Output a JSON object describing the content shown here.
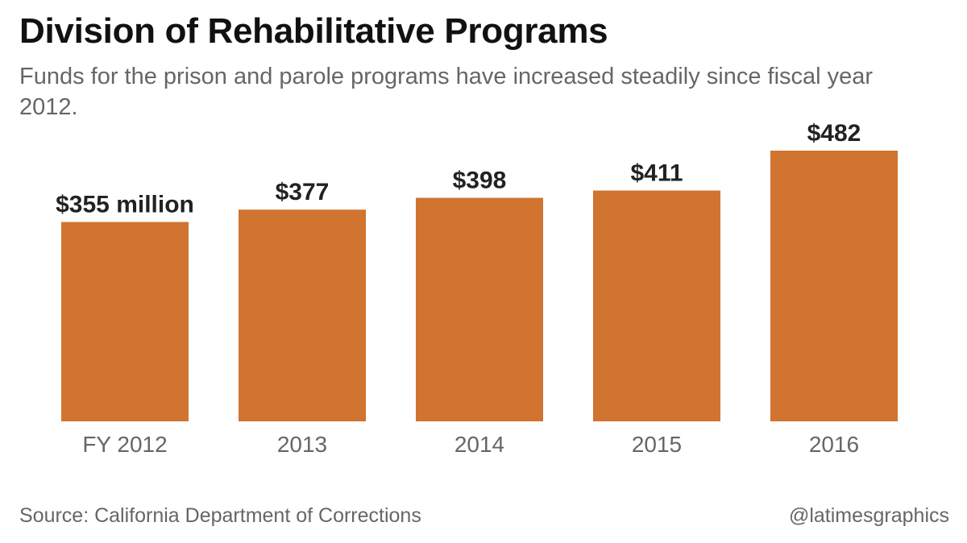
{
  "header": {
    "title": "Division of Rehabilitative Programs",
    "subtitle": "Funds for the prison and parole programs have increased steadily since fiscal year 2012."
  },
  "chart_data": {
    "type": "bar",
    "title": "Division of Rehabilitative Programs",
    "subtitle": "Funds for the prison and parole programs have increased steadily since fiscal year 2012.",
    "categories": [
      "FY 2012",
      "2013",
      "2014",
      "2015",
      "2016"
    ],
    "values": [
      355,
      377,
      398,
      411,
      482
    ],
    "value_labels": [
      "$355 million",
      "$377",
      "$398",
      "$411",
      "$482"
    ],
    "unit": "million dollars",
    "ylim": [
      0,
      482
    ],
    "grid": false,
    "legend": "none",
    "bar_color": "#d1742f"
  },
  "footer": {
    "source": "Source: California Department of Corrections",
    "credit": "@latimesgraphics"
  }
}
